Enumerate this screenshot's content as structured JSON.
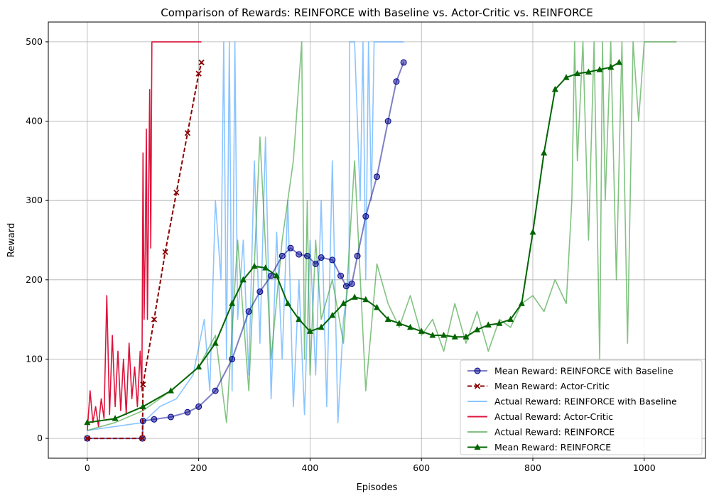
{
  "chart_data": {
    "type": "line",
    "title": "Comparison of Rewards: REINFORCE with Baseline vs. Actor-Critic vs. REINFORCE",
    "xlabel": "Episodes",
    "ylabel": "Reward",
    "xlim": [
      -70,
      1110
    ],
    "ylim": [
      -25,
      525
    ],
    "xticks": [
      0,
      200,
      400,
      600,
      800,
      1000
    ],
    "yticks": [
      0,
      100,
      200,
      300,
      400,
      500
    ],
    "grid": true,
    "legend_position": "lower right",
    "series": [
      {
        "name": "Mean Reward: REINFORCE with Baseline",
        "color": "#00008b",
        "style": "solid",
        "marker": "circle",
        "alpha": 0.5,
        "x": [
          0,
          99,
          100,
          120,
          150,
          180,
          200,
          230,
          260,
          290,
          310,
          330,
          350,
          365,
          380,
          395,
          410,
          420,
          440,
          455,
          465,
          475,
          485,
          500,
          520,
          540,
          555,
          568
        ],
        "y": [
          0,
          0,
          22,
          24,
          27,
          33,
          40,
          60,
          100,
          160,
          185,
          205,
          230,
          240,
          232,
          230,
          220,
          228,
          225,
          205,
          192,
          195,
          230,
          280,
          330,
          400,
          450,
          474
        ]
      },
      {
        "name": "Mean Reward: Actor-Critic",
        "color": "#8b0000",
        "style": "dashed",
        "marker": "x",
        "x": [
          0,
          99,
          100,
          120,
          140,
          160,
          180,
          200,
          205
        ],
        "y": [
          0,
          0,
          68,
          150,
          235,
          310,
          385,
          460,
          474
        ]
      },
      {
        "name": "Actual Reward: REINFORCE with Baseline",
        "color": "#4da6ff",
        "style": "solid",
        "alpha": 0.65,
        "x": [
          0,
          50,
          100,
          130,
          160,
          190,
          210,
          220,
          230,
          240,
          245,
          250,
          255,
          260,
          265,
          270,
          280,
          290,
          300,
          310,
          320,
          330,
          340,
          350,
          360,
          370,
          380,
          390,
          400,
          410,
          420,
          430,
          440,
          450,
          460,
          470,
          471,
          480,
          490,
          495,
          500,
          505,
          510,
          515,
          520,
          530,
          540,
          568
        ],
        "y": [
          10,
          15,
          20,
          40,
          50,
          80,
          150,
          60,
          300,
          200,
          500,
          100,
          500,
          60,
          500,
          150,
          250,
          80,
          350,
          120,
          380,
          50,
          260,
          100,
          300,
          40,
          200,
          30,
          250,
          80,
          300,
          40,
          350,
          20,
          150,
          200,
          500,
          500,
          300,
          500,
          200,
          500,
          300,
          500,
          500,
          500,
          500,
          500
        ]
      },
      {
        "name": "Actual Reward: Actor-Critic",
        "color": "#dc143c",
        "style": "solid",
        "x": [
          0,
          5,
          10,
          15,
          20,
          25,
          30,
          35,
          40,
          45,
          50,
          55,
          60,
          65,
          70,
          75,
          80,
          85,
          90,
          95,
          98,
          100,
          102,
          104,
          106,
          108,
          110,
          112,
          114,
          116,
          120,
          150,
          205
        ],
        "y": [
          10,
          60,
          20,
          40,
          15,
          50,
          25,
          180,
          30,
          130,
          40,
          110,
          35,
          100,
          30,
          120,
          50,
          90,
          40,
          110,
          60,
          360,
          150,
          240,
          390,
          150,
          300,
          440,
          240,
          500,
          500,
          500,
          500
        ]
      },
      {
        "name": "Actual Reward: REINFORCE",
        "color": "#2e9b2e",
        "style": "solid",
        "alpha": 0.6,
        "x": [
          0,
          50,
          100,
          150,
          200,
          230,
          250,
          270,
          290,
          310,
          330,
          350,
          370,
          385,
          390,
          395,
          400,
          410,
          420,
          440,
          460,
          480,
          500,
          520,
          540,
          560,
          580,
          600,
          620,
          640,
          660,
          680,
          700,
          720,
          740,
          760,
          780,
          800,
          820,
          840,
          860,
          870,
          875,
          880,
          890,
          900,
          910,
          920,
          925,
          930,
          940,
          950,
          960,
          970,
          980,
          990,
          1000,
          1010,
          1020,
          1030,
          1040,
          1058
        ],
        "y": [
          10,
          20,
          35,
          60,
          90,
          130,
          20,
          250,
          60,
          380,
          100,
          250,
          350,
          500,
          100,
          300,
          80,
          250,
          150,
          200,
          120,
          350,
          60,
          220,
          170,
          140,
          180,
          130,
          150,
          110,
          170,
          120,
          160,
          110,
          150,
          140,
          170,
          180,
          160,
          200,
          170,
          300,
          500,
          350,
          500,
          250,
          500,
          100,
          500,
          300,
          500,
          200,
          500,
          120,
          500,
          400,
          500,
          500,
          500,
          500,
          500,
          500
        ]
      },
      {
        "name": "Mean Reward: REINFORCE",
        "color": "#006400",
        "style": "solid",
        "marker": "triangle",
        "x": [
          0,
          50,
          100,
          150,
          200,
          230,
          260,
          280,
          300,
          320,
          340,
          360,
          380,
          400,
          420,
          440,
          460,
          480,
          500,
          520,
          540,
          560,
          580,
          600,
          620,
          640,
          660,
          680,
          700,
          720,
          740,
          760,
          780,
          800,
          820,
          840,
          860,
          880,
          900,
          920,
          940,
          955
        ],
        "y": [
          20,
          25,
          40,
          60,
          90,
          120,
          170,
          200,
          217,
          215,
          205,
          170,
          150,
          135,
          140,
          155,
          170,
          178,
          175,
          165,
          150,
          145,
          140,
          135,
          130,
          130,
          128,
          128,
          137,
          143,
          145,
          150,
          170,
          260,
          360,
          440,
          455,
          460,
          462,
          465,
          468,
          474
        ]
      }
    ]
  }
}
